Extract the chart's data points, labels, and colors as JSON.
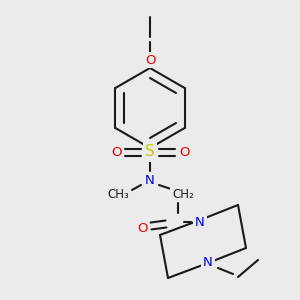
{
  "bg_color": "#ebebeb",
  "bond_color": "#1a1a1a",
  "atom_colors": {
    "N": "#0000ee",
    "O": "#ee0000",
    "S": "#cccc00",
    "C": "#1a1a1a"
  },
  "figsize": [
    3.0,
    3.0
  ],
  "dpi": 100
}
